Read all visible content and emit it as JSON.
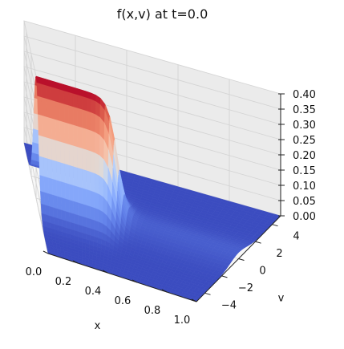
{
  "chart_data": {
    "type": "surface3d",
    "title": "f(x,v) at t=0.0",
    "xlabel": "x",
    "ylabel": "v",
    "zlabel": "",
    "xlim": [
      0.0,
      1.0
    ],
    "ylim": [
      -5,
      5
    ],
    "zlim": [
      0.0,
      0.4
    ],
    "x_ticks": [
      "0.0",
      "0.2",
      "0.4",
      "0.6",
      "0.8",
      "1.0"
    ],
    "y_ticks": [
      "−4",
      "−2",
      "0",
      "2",
      "4"
    ],
    "z_ticks": [
      "0.00",
      "0.05",
      "0.10",
      "0.15",
      "0.20",
      "0.25",
      "0.30",
      "0.35",
      "0.40"
    ],
    "colormap": "coolwarm",
    "surface_description": "Ridge near v=0 along x; height is highest (about 0.40) at small x and drops to about 0 by x≈0.45; small ridge of about 0.02 at larger x.",
    "peak_value": 0.4,
    "grid": true,
    "colors": {
      "pane_left": "#f2f2f2",
      "pane_back": "#ebebeb",
      "pane_floor": "#f7f7f7",
      "grid": "#d4d4d4",
      "low": "#3b4cc0",
      "high": "#b40426"
    }
  }
}
